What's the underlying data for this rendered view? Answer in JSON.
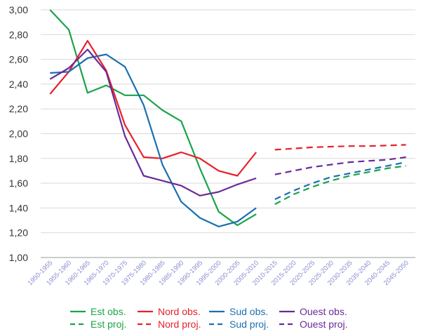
{
  "chart_data": {
    "type": "line",
    "title": "",
    "xlabel": "",
    "ylabel": "",
    "ylim": [
      1.0,
      3.0
    ],
    "yticks": [
      "1,00",
      "1,20",
      "1,40",
      "1,60",
      "1,80",
      "2,00",
      "2,20",
      "2,40",
      "2,60",
      "2,80",
      "3,00"
    ],
    "categories": [
      "1950-1955",
      "1955-1960",
      "1960-1965",
      "1965-1970",
      "1970-1975",
      "1975-1980",
      "1980-1985",
      "1985-1990",
      "1990-1995",
      "1995-2000",
      "2000-2005",
      "2005-2010",
      "2010-2015",
      "2015-2020",
      "2020-2025",
      "2025-2030",
      "2030-2035",
      "2035-2040",
      "2040-2045",
      "2045-2050"
    ],
    "grid": "horizontal",
    "legend_position": "bottom",
    "series": [
      {
        "name": "Est obs.",
        "color": "#1aa34a",
        "dashed": false,
        "values": [
          3.0,
          2.84,
          2.33,
          2.39,
          2.31,
          2.31,
          2.19,
          2.1,
          1.72,
          1.37,
          1.26,
          1.35,
          null,
          null,
          null,
          null,
          null,
          null,
          null,
          null
        ]
      },
      {
        "name": "Nord obs.",
        "color": "#e8202a",
        "dashed": false,
        "values": [
          2.32,
          2.5,
          2.75,
          2.51,
          2.07,
          1.81,
          1.8,
          1.85,
          1.8,
          1.7,
          1.66,
          1.85,
          null,
          null,
          null,
          null,
          null,
          null,
          null,
          null
        ]
      },
      {
        "name": "Sud obs.",
        "color": "#1a6fb0",
        "dashed": false,
        "values": [
          2.49,
          2.5,
          2.61,
          2.64,
          2.54,
          2.23,
          1.75,
          1.45,
          1.32,
          1.25,
          1.29,
          1.4,
          null,
          null,
          null,
          null,
          null,
          null,
          null,
          null
        ]
      },
      {
        "name": "Ouest obs.",
        "color": "#6a2a9a",
        "dashed": false,
        "values": [
          2.44,
          2.53,
          2.68,
          2.5,
          1.98,
          1.66,
          1.62,
          1.58,
          1.5,
          1.53,
          1.59,
          1.64,
          null,
          null,
          null,
          null,
          null,
          null,
          null,
          null
        ]
      },
      {
        "name": "Est proj.",
        "color": "#1aa34a",
        "dashed": true,
        "values": [
          null,
          null,
          null,
          null,
          null,
          null,
          null,
          null,
          null,
          null,
          null,
          null,
          1.43,
          1.51,
          1.57,
          1.62,
          1.66,
          1.69,
          1.72,
          1.74
        ]
      },
      {
        "name": "Nord proj.",
        "color": "#e8202a",
        "dashed": true,
        "values": [
          null,
          null,
          null,
          null,
          null,
          null,
          null,
          null,
          null,
          null,
          null,
          null,
          1.87,
          1.88,
          1.89,
          1.895,
          1.9,
          1.9,
          1.905,
          1.91
        ]
      },
      {
        "name": "Sud proj.",
        "color": "#1a6fb0",
        "dashed": true,
        "values": [
          null,
          null,
          null,
          null,
          null,
          null,
          null,
          null,
          null,
          null,
          null,
          null,
          1.47,
          1.54,
          1.6,
          1.65,
          1.68,
          1.71,
          1.74,
          1.77
        ]
      },
      {
        "name": "Ouest proj.",
        "color": "#6a2a9a",
        "dashed": true,
        "values": [
          null,
          null,
          null,
          null,
          null,
          null,
          null,
          null,
          null,
          null,
          null,
          null,
          1.67,
          1.7,
          1.73,
          1.75,
          1.77,
          1.78,
          1.79,
          1.81
        ]
      }
    ],
    "legend": [
      {
        "label": "Est obs.",
        "color": "#1aa34a",
        "dashed": false
      },
      {
        "label": "Nord obs.",
        "color": "#e8202a",
        "dashed": false
      },
      {
        "label": "Sud obs.",
        "color": "#1a6fb0",
        "dashed": false
      },
      {
        "label": "Ouest obs.",
        "color": "#6a2a9a",
        "dashed": false
      },
      {
        "label": "Est proj.",
        "color": "#1aa34a",
        "dashed": true
      },
      {
        "label": "Nord proj.",
        "color": "#e8202a",
        "dashed": true
      },
      {
        "label": "Sud proj.",
        "color": "#1a6fb0",
        "dashed": true
      },
      {
        "label": "Ouest proj.",
        "color": "#6a2a9a",
        "dashed": true
      }
    ]
  }
}
